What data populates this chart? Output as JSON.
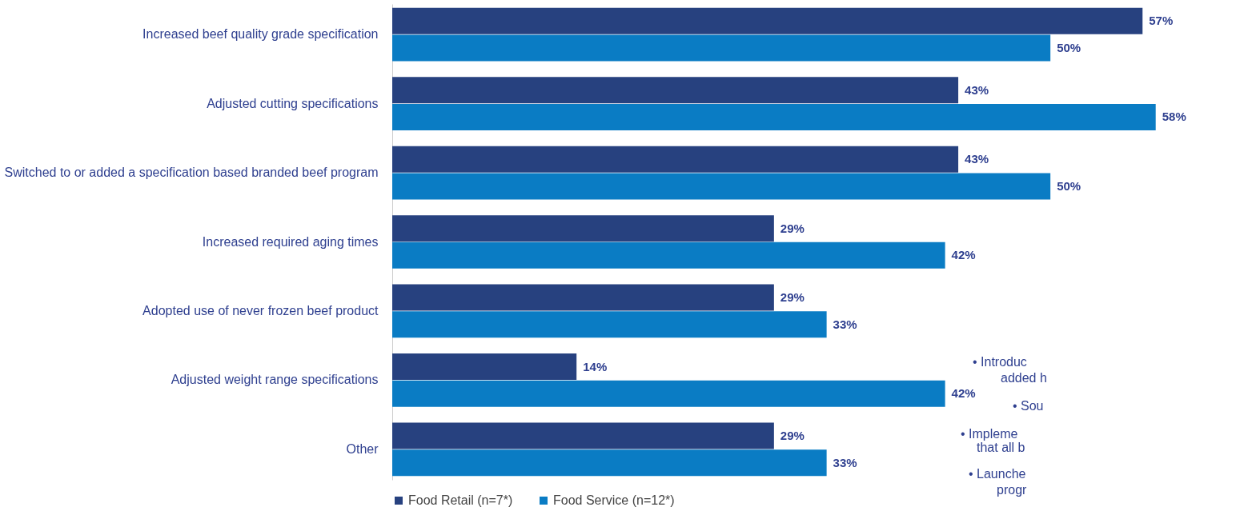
{
  "chart_data": {
    "type": "bar",
    "orientation": "horizontal",
    "categories": [
      "Increased beef quality grade specification",
      "Adjusted cutting specifications",
      "Switched to or added a specification based branded beef program",
      "Increased required aging times",
      "Adopted use of never frozen beef product",
      "Adjusted weight range specifications",
      "Other"
    ],
    "series": [
      {
        "name": "Food Retail (n=7*)",
        "color": "#27417f",
        "values": [
          57,
          43,
          43,
          29,
          29,
          14,
          29
        ],
        "value_labels": [
          "57%",
          "43%",
          "43%",
          "29%",
          "29%",
          "14%",
          "29%"
        ]
      },
      {
        "name": "Food Service (n=12*)",
        "color": "#0a7cc4",
        "values": [
          50,
          58,
          50,
          42,
          33,
          42,
          33
        ],
        "value_labels": [
          "50%",
          "58%",
          "50%",
          "42%",
          "33%",
          "42%",
          "33%"
        ]
      }
    ],
    "legend": "bottom",
    "grid": false,
    "tick_labels": "y",
    "annotations": [
      "• Introduc",
      "added h",
      "• Sou",
      "• Impleme",
      "that all b",
      "• Launche",
      "progr"
    ]
  }
}
